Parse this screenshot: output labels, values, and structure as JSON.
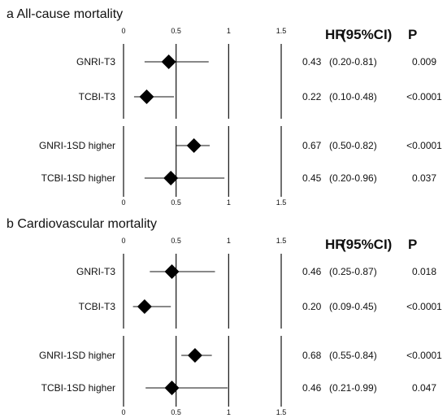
{
  "chart_data": [
    {
      "type": "forest",
      "title": "a All-cause mortality",
      "x_ticks": [
        "0",
        "0.5",
        "1",
        "1.5"
      ],
      "xlim": [
        0,
        1.5
      ],
      "reference_line": 1,
      "columns": [
        "HR",
        "(95%CI)",
        "P"
      ],
      "groups": [
        [
          {
            "label": "GNRI-T3",
            "hr": 0.43,
            "lo": 0.2,
            "hi": 0.81,
            "hr_text": "0.43",
            "ci_text": "(0.20-0.81)",
            "p_text": "0.009"
          },
          {
            "label": "TCBI-T3",
            "hr": 0.22,
            "lo": 0.1,
            "hi": 0.48,
            "hr_text": "0.22",
            "ci_text": "(0.10-0.48)",
            "p_text": "<0.0001"
          }
        ],
        [
          {
            "label": "GNRI-1SD higher",
            "hr": 0.67,
            "lo": 0.5,
            "hi": 0.82,
            "hr_text": "0.67",
            "ci_text": "(0.50-0.82)",
            "p_text": "<0.0001"
          },
          {
            "label": "TCBI-1SD higher",
            "hr": 0.45,
            "lo": 0.2,
            "hi": 0.96,
            "hr_text": "0.45",
            "ci_text": "(0.20-0.96)",
            "p_text": "0.037"
          }
        ]
      ]
    },
    {
      "type": "forest",
      "title": "b Cardiovascular mortality",
      "x_ticks": [
        "0",
        "0.5",
        "1",
        "1.5"
      ],
      "xlim": [
        0,
        1.5
      ],
      "reference_line": 1,
      "columns": [
        "HR",
        "(95%CI)",
        "P"
      ],
      "groups": [
        [
          {
            "label": "GNRI-T3",
            "hr": 0.46,
            "lo": 0.25,
            "hi": 0.87,
            "hr_text": "0.46",
            "ci_text": "(0.25-0.87)",
            "p_text": "0.018"
          },
          {
            "label": "TCBI-T3",
            "hr": 0.2,
            "lo": 0.09,
            "hi": 0.45,
            "hr_text": "0.20",
            "ci_text": "(0.09-0.45)",
            "p_text": "<0.0001"
          }
        ],
        [
          {
            "label": "GNRI-1SD higher",
            "hr": 0.68,
            "lo": 0.55,
            "hi": 0.84,
            "hr_text": "0.68",
            "ci_text": "(0.55-0.84)",
            "p_text": "<0.0001"
          },
          {
            "label": "TCBI-1SD higher",
            "hr": 0.46,
            "lo": 0.21,
            "hi": 0.99,
            "hr_text": "0.46",
            "ci_text": "(0.21-0.99)",
            "p_text": "0.047"
          }
        ]
      ]
    }
  ]
}
